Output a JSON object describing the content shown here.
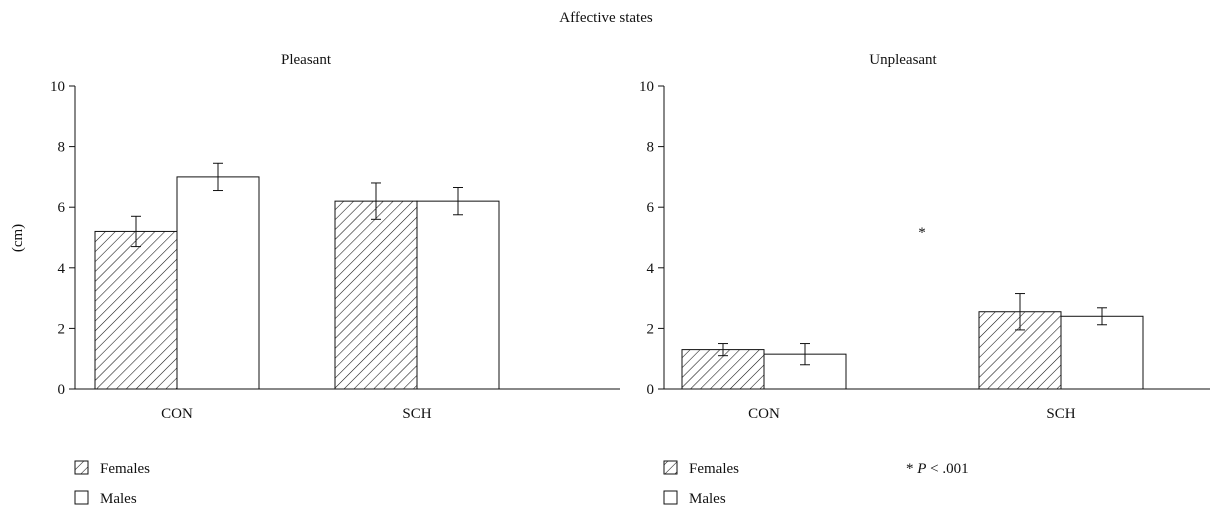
{
  "figure": {
    "title": "Affective states"
  },
  "chart_data": [
    {
      "type": "bar",
      "title": "Pleasant",
      "ylabel": "(cm)",
      "xlabel": "",
      "ylim": [
        0,
        10
      ],
      "yticks": [
        0,
        2,
        4,
        6,
        8,
        10
      ],
      "categories": [
        "CON",
        "SCH"
      ],
      "series": [
        {
          "name": "Females",
          "pattern": "hatch",
          "values": [
            5.2,
            6.2
          ],
          "error": [
            0.5,
            0.6
          ]
        },
        {
          "name": "Males",
          "pattern": "open",
          "values": [
            7.0,
            6.2
          ],
          "error": [
            0.45,
            0.45
          ]
        }
      ],
      "annotation": "",
      "legend": {
        "placement": "bottom-left",
        "items": [
          "Females",
          "Males"
        ]
      },
      "grid": false
    },
    {
      "type": "bar",
      "title": "Unpleasant",
      "ylabel": "",
      "xlabel": "",
      "ylim": [
        0,
        10
      ],
      "yticks": [
        0,
        2,
        4,
        6,
        8,
        10
      ],
      "categories": [
        "CON",
        "SCH"
      ],
      "series": [
        {
          "name": "Females",
          "pattern": "hatch",
          "values": [
            1.3,
            2.55
          ],
          "error": [
            0.2,
            0.6
          ]
        },
        {
          "name": "Males",
          "pattern": "open",
          "values": [
            1.15,
            2.4
          ],
          "error": [
            0.35,
            0.28
          ]
        }
      ],
      "annotation": "*",
      "legend": {
        "placement": "bottom-left",
        "items": [
          "Females",
          "Males"
        ]
      },
      "footnote": {
        "star": "*",
        "italic": "P",
        "rest": " < .001"
      },
      "grid": false
    }
  ]
}
